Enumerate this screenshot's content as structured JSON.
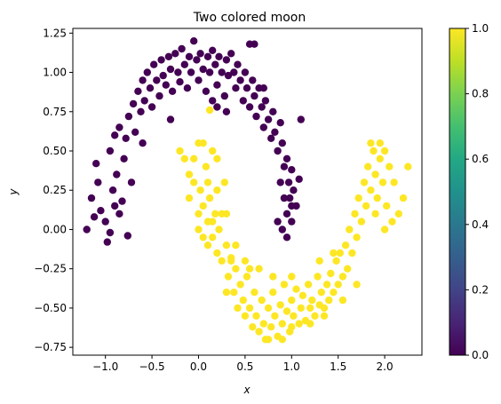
{
  "chart_data": {
    "type": "scatter",
    "title": "Two colored moon",
    "xlabel": "x",
    "ylabel": "y",
    "xlim": [
      -1.35,
      2.4
    ],
    "ylim": [
      -0.8,
      1.28
    ],
    "xticks": [
      "−1.0",
      "−0.5",
      "0.0",
      "0.5",
      "1.0",
      "1.5",
      "2.0"
    ],
    "xtick_values": [
      -1.0,
      -0.5,
      0.0,
      0.5,
      1.0,
      1.5,
      2.0
    ],
    "yticks": [
      "−0.75",
      "−0.50",
      "−0.25",
      "0.00",
      "0.25",
      "0.50",
      "0.75",
      "1.00",
      "1.25"
    ],
    "ytick_values": [
      -0.75,
      -0.5,
      -0.25,
      0.0,
      0.25,
      0.5,
      0.75,
      1.0,
      1.25
    ],
    "grid": false,
    "colormap": "viridis",
    "colorbar": {
      "range": [
        0.0,
        1.0
      ],
      "ticks": [
        "0.0",
        "0.2",
        "0.4",
        "0.6",
        "0.8",
        "1.0"
      ],
      "tick_values": [
        0.0,
        0.2,
        0.4,
        0.6,
        0.8,
        1.0
      ]
    },
    "colors": {
      "class_0": "#440154",
      "class_1": "#fde725"
    },
    "series": [
      {
        "class": 0,
        "points": [
          [
            -1.2,
            0.0
          ],
          [
            -1.15,
            0.2
          ],
          [
            -1.1,
            0.42
          ],
          [
            -1.05,
            0.12
          ],
          [
            -1.0,
            0.05
          ],
          [
            -0.98,
            -0.08
          ],
          [
            -1.08,
            0.3
          ],
          [
            -0.95,
            0.5
          ],
          [
            -0.92,
            0.25
          ],
          [
            -0.9,
            0.6
          ],
          [
            -0.88,
            0.35
          ],
          [
            -0.85,
            0.65
          ],
          [
            -0.82,
            0.18
          ],
          [
            -0.8,
            0.45
          ],
          [
            -0.78,
            0.58
          ],
          [
            -0.76,
            -0.04
          ],
          [
            -0.75,
            0.72
          ],
          [
            -0.72,
            0.3
          ],
          [
            -0.7,
            0.8
          ],
          [
            -0.68,
            0.62
          ],
          [
            -0.65,
            0.88
          ],
          [
            -0.62,
            0.75
          ],
          [
            -0.6,
            0.95
          ],
          [
            -0.58,
            0.82
          ],
          [
            -0.55,
            1.0
          ],
          [
            -0.52,
            0.9
          ],
          [
            -0.5,
            0.78
          ],
          [
            -0.48,
            1.05
          ],
          [
            -0.45,
            0.95
          ],
          [
            -0.42,
            0.85
          ],
          [
            -0.4,
            1.08
          ],
          [
            -0.38,
            0.98
          ],
          [
            -0.35,
            0.92
          ],
          [
            -0.32,
            1.1
          ],
          [
            -0.3,
            1.02
          ],
          [
            -0.28,
            0.88
          ],
          [
            -0.25,
            1.12
          ],
          [
            -0.22,
            1.0
          ],
          [
            -0.2,
            0.94
          ],
          [
            -0.18,
            1.15
          ],
          [
            -0.15,
            1.05
          ],
          [
            -0.12,
            0.9
          ],
          [
            -0.1,
            1.1
          ],
          [
            -0.08,
            1.0
          ],
          [
            -0.05,
            1.2
          ],
          [
            -0.02,
            1.08
          ],
          [
            0.0,
            0.95
          ],
          [
            0.02,
            1.12
          ],
          [
            0.05,
            1.02
          ],
          [
            0.08,
            0.88
          ],
          [
            0.1,
            1.1
          ],
          [
            0.12,
            1.0
          ],
          [
            0.15,
            1.14
          ],
          [
            0.18,
            1.05
          ],
          [
            0.2,
            0.92
          ],
          [
            0.22,
            1.1
          ],
          [
            0.25,
            1.0
          ],
          [
            0.28,
            0.85
          ],
          [
            0.3,
            1.08
          ],
          [
            0.32,
            0.98
          ],
          [
            0.35,
            1.12
          ],
          [
            0.38,
            1.0
          ],
          [
            0.4,
            0.9
          ],
          [
            0.42,
            1.05
          ],
          [
            0.45,
            0.95
          ],
          [
            0.48,
            0.82
          ],
          [
            0.5,
            1.0
          ],
          [
            0.52,
            0.9
          ],
          [
            0.55,
            0.78
          ],
          [
            0.58,
            0.95
          ],
          [
            0.6,
            0.85
          ],
          [
            0.62,
            0.72
          ],
          [
            0.65,
            0.9
          ],
          [
            0.68,
            0.78
          ],
          [
            0.7,
            0.65
          ],
          [
            0.72,
            0.82
          ],
          [
            0.75,
            0.7
          ],
          [
            0.78,
            0.58
          ],
          [
            0.8,
            0.75
          ],
          [
            0.82,
            0.62
          ],
          [
            0.85,
            0.5
          ],
          [
            0.88,
            0.68
          ],
          [
            0.9,
            0.55
          ],
          [
            0.92,
            0.4
          ],
          [
            0.95,
            0.45
          ],
          [
            0.97,
            0.3
          ],
          [
            1.0,
            0.38
          ],
          [
            0.98,
            0.2
          ],
          [
            1.02,
            0.25
          ],
          [
            0.95,
            0.1
          ],
          [
            1.0,
            0.05
          ],
          [
            0.9,
            0.0
          ],
          [
            1.05,
            0.15
          ],
          [
            0.92,
            0.2
          ],
          [
            1.08,
            0.32
          ],
          [
            1.1,
            0.7
          ],
          [
            0.55,
            1.18
          ],
          [
            0.6,
            1.18
          ],
          [
            0.7,
            0.9
          ],
          [
            0.3,
            0.75
          ],
          [
            0.2,
            0.78
          ],
          [
            0.15,
            0.82
          ],
          [
            -0.3,
            0.7
          ],
          [
            -0.6,
            0.55
          ],
          [
            -0.9,
            0.15
          ],
          [
            -1.12,
            0.08
          ],
          [
            -0.95,
            -0.02
          ],
          [
            -0.85,
            0.1
          ],
          [
            0.85,
            0.05
          ],
          [
            0.95,
            -0.05
          ],
          [
            1.0,
            0.15
          ],
          [
            0.88,
            0.3
          ]
        ]
      },
      {
        "class": 1,
        "points": [
          [
            -0.2,
            0.5
          ],
          [
            -0.15,
            0.45
          ],
          [
            -0.1,
            0.35
          ],
          [
            -0.05,
            0.3
          ],
          [
            0.0,
            0.55
          ],
          [
            0.02,
            0.25
          ],
          [
            0.05,
            0.15
          ],
          [
            0.08,
            0.4
          ],
          [
            0.1,
            0.05
          ],
          [
            0.12,
            0.2
          ],
          [
            0.15,
            -0.05
          ],
          [
            0.18,
            0.1
          ],
          [
            0.2,
            -0.15
          ],
          [
            0.22,
            0.0
          ],
          [
            0.25,
            -0.2
          ],
          [
            0.28,
            0.3
          ],
          [
            0.3,
            -0.1
          ],
          [
            0.32,
            -0.3
          ],
          [
            0.35,
            -0.18
          ],
          [
            0.38,
            -0.4
          ],
          [
            0.4,
            -0.25
          ],
          [
            0.42,
            -0.5
          ],
          [
            0.45,
            -0.35
          ],
          [
            0.48,
            -0.45
          ],
          [
            0.5,
            -0.55
          ],
          [
            0.52,
            -0.3
          ],
          [
            0.55,
            -0.5
          ],
          [
            0.58,
            -0.62
          ],
          [
            0.6,
            -0.4
          ],
          [
            0.62,
            -0.55
          ],
          [
            0.65,
            -0.65
          ],
          [
            0.68,
            -0.45
          ],
          [
            0.7,
            -0.6
          ],
          [
            0.72,
            -0.7
          ],
          [
            0.75,
            -0.5
          ],
          [
            0.78,
            -0.62
          ],
          [
            0.8,
            -0.4
          ],
          [
            0.82,
            -0.55
          ],
          [
            0.85,
            -0.68
          ],
          [
            0.88,
            -0.48
          ],
          [
            0.9,
            -0.6
          ],
          [
            0.92,
            -0.35
          ],
          [
            0.95,
            -0.52
          ],
          [
            0.98,
            -0.65
          ],
          [
            1.0,
            -0.45
          ],
          [
            1.02,
            -0.55
          ],
          [
            1.05,
            -0.38
          ],
          [
            1.08,
            -0.6
          ],
          [
            1.1,
            -0.5
          ],
          [
            1.12,
            -0.42
          ],
          [
            1.15,
            -0.58
          ],
          [
            1.18,
            -0.35
          ],
          [
            1.2,
            -0.5
          ],
          [
            1.22,
            -0.45
          ],
          [
            1.25,
            -0.55
          ],
          [
            1.28,
            -0.3
          ],
          [
            1.3,
            -0.48
          ],
          [
            1.32,
            -0.4
          ],
          [
            1.35,
            -0.5
          ],
          [
            1.38,
            -0.35
          ],
          [
            1.4,
            -0.45
          ],
          [
            1.42,
            -0.28
          ],
          [
            1.45,
            -0.4
          ],
          [
            1.48,
            -0.2
          ],
          [
            1.5,
            -0.35
          ],
          [
            1.52,
            -0.15
          ],
          [
            1.55,
            -0.3
          ],
          [
            1.58,
            -0.1
          ],
          [
            1.6,
            -0.25
          ],
          [
            1.62,
            0.0
          ],
          [
            1.65,
            -0.15
          ],
          [
            1.68,
            0.1
          ],
          [
            1.7,
            -0.05
          ],
          [
            1.72,
            0.2
          ],
          [
            1.75,
            0.05
          ],
          [
            1.78,
            0.3
          ],
          [
            1.8,
            0.15
          ],
          [
            1.82,
            0.4
          ],
          [
            1.85,
            0.25
          ],
          [
            1.88,
            0.5
          ],
          [
            1.9,
            0.35
          ],
          [
            1.92,
            0.2
          ],
          [
            1.95,
            0.45
          ],
          [
            1.98,
            0.3
          ],
          [
            2.0,
            0.5
          ],
          [
            2.02,
            0.15
          ],
          [
            2.05,
            0.4
          ],
          [
            2.08,
            0.05
          ],
          [
            2.1,
            0.3
          ],
          [
            2.15,
            0.1
          ],
          [
            2.2,
            0.2
          ],
          [
            2.25,
            0.4
          ],
          [
            1.95,
            0.55
          ],
          [
            1.85,
            0.55
          ],
          [
            2.0,
            0.0
          ],
          [
            1.9,
            0.1
          ],
          [
            0.1,
            0.3
          ],
          [
            0.0,
            0.1
          ],
          [
            -0.05,
            0.45
          ],
          [
            0.05,
            0.55
          ],
          [
            0.2,
            0.25
          ],
          [
            0.15,
            0.05
          ],
          [
            0.25,
            0.1
          ],
          [
            0.0,
            0.0
          ],
          [
            0.1,
            -0.1
          ],
          [
            0.3,
            -0.4
          ],
          [
            0.4,
            -0.1
          ],
          [
            0.5,
            -0.2
          ],
          [
            0.65,
            -0.25
          ],
          [
            0.8,
            -0.3
          ],
          [
            1.0,
            -0.3
          ],
          [
            1.2,
            -0.6
          ],
          [
            0.9,
            -0.7
          ],
          [
            0.75,
            -0.7
          ],
          [
            1.0,
            -0.62
          ],
          [
            1.35,
            -0.55
          ],
          [
            1.55,
            -0.45
          ],
          [
            1.7,
            -0.35
          ],
          [
            1.3,
            -0.2
          ],
          [
            1.45,
            -0.15
          ],
          [
            0.12,
            0.76
          ],
          [
            0.35,
            -0.2
          ],
          [
            0.55,
            -0.25
          ],
          [
            0.05,
            -0.05
          ],
          [
            0.2,
            0.45
          ],
          [
            0.15,
            0.5
          ],
          [
            -0.1,
            0.2
          ],
          [
            0.3,
            0.1
          ]
        ]
      }
    ]
  }
}
